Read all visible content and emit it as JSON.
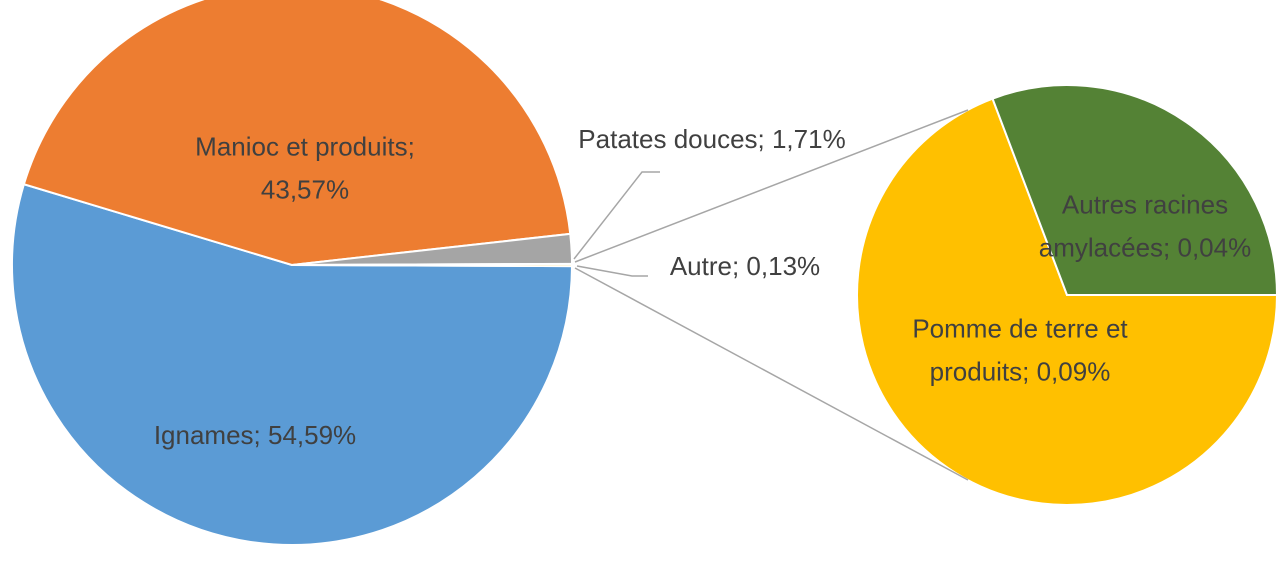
{
  "chart_data": {
    "type": "pie-of-pie",
    "labels": [
      "Ignames; 54,59%",
      "Manioc et produits; 43,57%",
      "Patates douces; 1,71%",
      "Autre; 0,13%"
    ],
    "values": [
      54.59,
      43.57,
      1.71,
      0.13
    ],
    "colors": [
      "#5b9bd5",
      "#ed7d31",
      "#a5a5a5",
      "#ffc000"
    ],
    "secondary": {
      "labels": [
        "Pomme de terre et produits; 0,09%",
        "Autres racines amylacées; 0,04%"
      ],
      "values": [
        0.09,
        0.04
      ],
      "colors": [
        "#ffc000",
        "#548235"
      ]
    }
  }
}
